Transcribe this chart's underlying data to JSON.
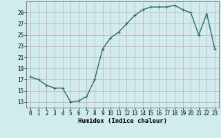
{
  "x": [
    0,
    1,
    2,
    3,
    4,
    5,
    6,
    7,
    8,
    9,
    10,
    11,
    12,
    13,
    14,
    15,
    16,
    17,
    18,
    19,
    20,
    21,
    22,
    23
  ],
  "y": [
    17.5,
    17.0,
    16.0,
    15.5,
    15.5,
    13.0,
    13.2,
    14.0,
    17.0,
    22.5,
    24.5,
    25.5,
    27.0,
    28.5,
    29.5,
    30.0,
    30.0,
    30.0,
    30.3,
    29.5,
    29.0,
    25.0,
    28.8,
    22.5
  ],
  "line_color": "#2e6b5e",
  "marker": "+",
  "bg_color": "#d0ecec",
  "grid_color": "#c8a8b8",
  "xlabel": "Humidex (Indice chaleur)",
  "xlim": [
    -0.5,
    23.5
  ],
  "ylim": [
    12.0,
    31.0
  ],
  "yticks": [
    13,
    15,
    17,
    19,
    21,
    23,
    25,
    27,
    29
  ],
  "xticks": [
    0,
    1,
    2,
    3,
    4,
    5,
    6,
    7,
    8,
    9,
    10,
    11,
    12,
    13,
    14,
    15,
    16,
    17,
    18,
    19,
    20,
    21,
    22,
    23
  ],
  "xlabel_fontsize": 6.5,
  "tick_fontsize": 5.5,
  "line_width": 1.0,
  "marker_size": 3.5,
  "marker_edge_width": 0.8
}
